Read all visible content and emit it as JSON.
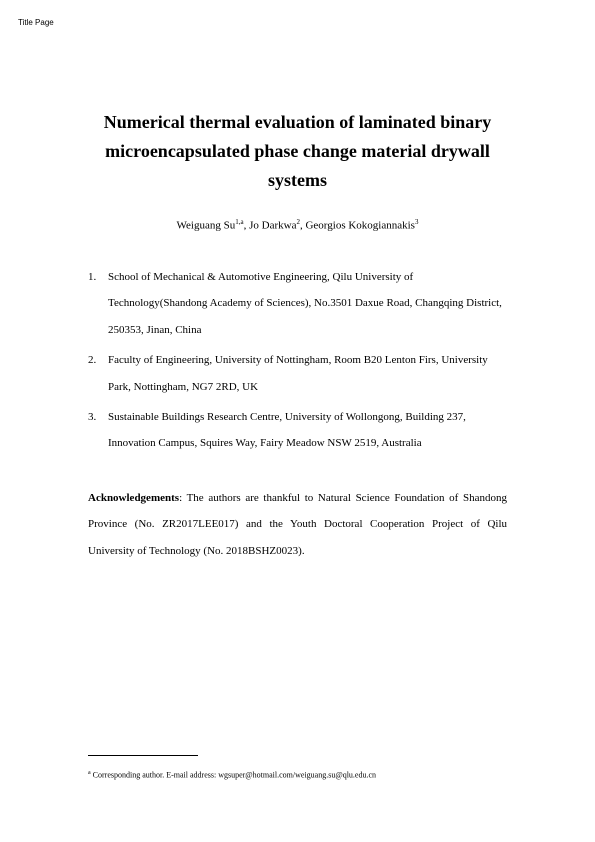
{
  "header_label": "Title Page",
  "title": "Numerical thermal evaluation of laminated binary microencapsulated phase change material drywall systems",
  "authors": [
    {
      "name": "Weiguang Su",
      "sup": "1,a"
    },
    {
      "name": "Jo Darkwa",
      "sup": "2"
    },
    {
      "name": "Georgios Kokogiannakis",
      "sup": "3"
    }
  ],
  "affiliations": [
    {
      "num": "1.",
      "text": "School of Mechanical & Automotive Engineering, Qilu University of Technology(Shandong Academy of Sciences), No.3501 Daxue Road, Changqing District, 250353, Jinan, China"
    },
    {
      "num": "2.",
      "text": "Faculty of Engineering, University of Nottingham, Room B20 Lenton Firs, University Park, Nottingham, NG7 2RD, UK"
    },
    {
      "num": "3.",
      "text": "Sustainable Buildings Research Centre, University of Wollongong, Building 237, Innovation Campus, Squires Way, Fairy Meadow NSW 2519, Australia"
    }
  ],
  "ack_label": "Acknowledgements",
  "ack_text": ": The authors are thankful to Natural Science Foundation of Shandong Province (No. ZR2017LEE017) and the Youth Doctoral Cooperation Project of Qilu University of Technology (No. 2018BSHZ0023).",
  "footnote_marker": "a",
  "footnote_text": " Corresponding author. E-mail address: wgsuper@hotmail.com/weiguang.su@qlu.edu.cn"
}
